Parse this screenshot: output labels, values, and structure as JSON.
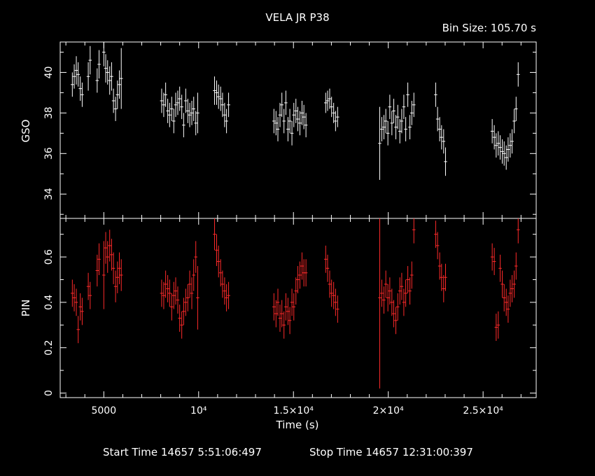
{
  "header": {
    "title": "VELA JR P38",
    "bin_size": "Bin Size: 105.70 s"
  },
  "footer": {
    "start_time": "Start Time 14657  5:51:06:497",
    "stop_time": "Stop Time 14657 12:31:00:397"
  },
  "colors": {
    "background": "#000000",
    "axes": "#ffffff",
    "gso": "#ffffff",
    "pin": "#ff2a2a"
  },
  "chart_data": [
    {
      "type": "scatter",
      "ylabel": "GSO",
      "xlabel": "",
      "xlim": [
        2700,
        27800
      ],
      "ylim": [
        32.8,
        41.5
      ],
      "yticks": [
        "34",
        "36",
        "38",
        "40"
      ],
      "series": [
        {
          "x": [
            3340,
            3440,
            3550,
            3650,
            3760,
            3860,
            4180,
            4280,
            4650,
            4750,
            5000,
            5100,
            5200,
            5310,
            5410,
            5510,
            5620,
            5720,
            5820,
            5920,
            8050,
            8160,
            8260,
            8370,
            8470,
            8580,
            8690,
            8790,
            8900,
            9000,
            9110,
            9210,
            9320,
            9430,
            9530,
            9640,
            9740,
            9850,
            9950,
            10840,
            10950,
            11050,
            11160,
            11260,
            11370,
            11470,
            11580,
            13970,
            14080,
            14180,
            14290,
            14390,
            14500,
            14600,
            14710,
            14810,
            14920,
            15020,
            15130,
            15230,
            15340,
            15450,
            15550,
            15660,
            16700,
            16800,
            16910,
            17010,
            17120,
            17220,
            17330,
            19550,
            19660,
            19770,
            19870,
            19980,
            20080,
            20190,
            20290,
            20400,
            20500,
            20610,
            20710,
            20820,
            20920,
            21030,
            21140,
            21240,
            21350,
            22500,
            22600,
            22710,
            22810,
            22920,
            23020,
            25480,
            25590,
            25690,
            25800,
            25900,
            26010,
            26110,
            26220,
            26320,
            26430,
            26530,
            26640,
            26740,
            26850
          ],
          "y": [
            39.4,
            39.8,
            40.1,
            39.9,
            39.2,
            38.9,
            39.8,
            40.6,
            39.6,
            40.4,
            41.0,
            40.2,
            40.0,
            39.6,
            39.8,
            38.6,
            38.2,
            38.9,
            39.4,
            39.7,
            38.6,
            38.4,
            38.9,
            38.1,
            37.9,
            38.2,
            37.6,
            38.4,
            38.5,
            38.7,
            38.3,
            37.4,
            38.6,
            38.1,
            37.9,
            38.0,
            38.2,
            37.5,
            38.0,
            39.1,
            39.0,
            38.8,
            38.7,
            38.4,
            37.9,
            37.6,
            38.4,
            37.6,
            37.5,
            37.2,
            37.9,
            38.4,
            37.6,
            38.5,
            37.2,
            37.6,
            37.0,
            37.9,
            38.1,
            37.7,
            37.5,
            38.0,
            37.8,
            37.4,
            38.5,
            38.6,
            38.7,
            38.3,
            38.0,
            37.6,
            37.8,
            36.5,
            37.2,
            37.3,
            37.6,
            37.0,
            38.3,
            37.5,
            38.1,
            37.3,
            37.8,
            37.1,
            37.6,
            38.3,
            37.2,
            38.9,
            37.3,
            38.0,
            38.4,
            38.9,
            37.7,
            37.2,
            36.8,
            36.6,
            35.6,
            37.1,
            36.8,
            36.4,
            36.5,
            36.3,
            36.1,
            36.0,
            35.8,
            36.2,
            36.4,
            36.6,
            37.6,
            38.2,
            39.9
          ],
          "err": [
            0.6,
            0.6,
            0.7,
            0.6,
            0.6,
            0.6,
            0.7,
            0.7,
            0.6,
            0.7,
            0.7,
            0.7,
            0.6,
            0.7,
            0.7,
            0.6,
            0.6,
            0.7,
            0.7,
            1.5,
            0.6,
            0.6,
            0.6,
            0.6,
            0.6,
            0.6,
            0.6,
            0.6,
            0.6,
            0.6,
            0.6,
            0.6,
            0.6,
            0.6,
            0.6,
            0.6,
            0.6,
            0.6,
            1.0,
            0.7,
            0.6,
            0.6,
            0.6,
            0.6,
            0.6,
            0.6,
            0.6,
            0.6,
            0.6,
            0.6,
            0.6,
            0.6,
            0.6,
            0.6,
            0.6,
            0.6,
            0.6,
            0.6,
            0.6,
            0.6,
            0.6,
            0.6,
            0.6,
            0.6,
            0.5,
            0.5,
            0.5,
            0.5,
            0.5,
            0.5,
            0.5,
            1.8,
            0.6,
            0.6,
            0.6,
            0.6,
            0.6,
            0.6,
            0.6,
            0.6,
            0.6,
            0.6,
            0.6,
            0.6,
            0.6,
            0.6,
            0.6,
            0.6,
            0.6,
            0.6,
            0.6,
            0.6,
            0.6,
            0.6,
            0.7,
            0.6,
            0.6,
            0.6,
            0.6,
            0.6,
            0.6,
            0.6,
            0.6,
            0.6,
            0.6,
            0.6,
            0.6,
            0.6,
            0.6
          ]
        }
      ]
    },
    {
      "type": "scatter",
      "ylabel": "PIN",
      "xlabel": "Time (s)",
      "xlim": [
        2700,
        27800
      ],
      "ylim": [
        -0.02,
        0.77
      ],
      "yticks": [
        "0",
        "0.2",
        "0.4",
        "0.6"
      ],
      "xticks": [
        {
          "value": 5000,
          "label": "5000"
        },
        {
          "value": 10000,
          "label": "10⁴"
        },
        {
          "value": 15000,
          "label": "1.5×10⁴"
        },
        {
          "value": 20000,
          "label": "2×10⁴"
        },
        {
          "value": 25000,
          "label": "2.5×10⁴"
        }
      ],
      "series": [
        {
          "x": [
            3340,
            3440,
            3550,
            3650,
            3760,
            3860,
            4180,
            4280,
            4650,
            4750,
            5000,
            5100,
            5200,
            5310,
            5410,
            5510,
            5620,
            5720,
            5820,
            5920,
            8050,
            8160,
            8260,
            8370,
            8470,
            8580,
            8690,
            8790,
            8900,
            9000,
            9110,
            9210,
            9320,
            9430,
            9530,
            9640,
            9740,
            9850,
            9950,
            10840,
            10950,
            11050,
            11160,
            11260,
            11370,
            11470,
            11580,
            13970,
            14080,
            14180,
            14290,
            14390,
            14500,
            14600,
            14710,
            14810,
            14920,
            15020,
            15130,
            15230,
            15340,
            15450,
            15550,
            15660,
            16700,
            16800,
            16910,
            17010,
            17120,
            17220,
            17330,
            19550,
            19660,
            19770,
            19870,
            19980,
            20080,
            20190,
            20290,
            20400,
            20500,
            20610,
            20710,
            20820,
            20920,
            21030,
            21140,
            21240,
            21350,
            22500,
            22600,
            22710,
            22810,
            22920,
            23020,
            25480,
            25590,
            25690,
            25800,
            25900,
            26010,
            26110,
            26220,
            26320,
            26430,
            26530,
            26640,
            26740,
            26850
          ],
          "y": [
            0.44,
            0.42,
            0.4,
            0.28,
            0.38,
            0.36,
            0.47,
            0.43,
            0.54,
            0.59,
            0.52,
            0.64,
            0.6,
            0.65,
            0.61,
            0.55,
            0.47,
            0.51,
            0.55,
            0.52,
            0.44,
            0.43,
            0.48,
            0.46,
            0.44,
            0.38,
            0.43,
            0.45,
            0.41,
            0.33,
            0.3,
            0.36,
            0.4,
            0.42,
            0.48,
            0.44,
            0.52,
            0.6,
            0.42,
            0.7,
            0.63,
            0.58,
            0.53,
            0.48,
            0.45,
            0.42,
            0.43,
            0.38,
            0.35,
            0.4,
            0.33,
            0.35,
            0.3,
            0.38,
            0.36,
            0.32,
            0.4,
            0.38,
            0.45,
            0.5,
            0.52,
            0.56,
            0.53,
            0.53,
            0.59,
            0.55,
            0.48,
            0.44,
            0.43,
            0.4,
            0.37,
            0.42,
            0.44,
            0.41,
            0.48,
            0.42,
            0.45,
            0.4,
            0.35,
            0.32,
            0.38,
            0.45,
            0.47,
            0.4,
            0.44,
            0.5,
            0.45,
            0.52,
            0.72,
            0.7,
            0.65,
            0.56,
            0.51,
            0.46,
            0.51,
            0.6,
            0.58,
            0.29,
            0.3,
            0.55,
            0.48,
            0.42,
            0.4,
            0.37,
            0.44,
            0.46,
            0.48,
            0.56,
            0.72
          ],
          "err": [
            0.06,
            0.06,
            0.06,
            0.06,
            0.06,
            0.06,
            0.06,
            0.06,
            0.07,
            0.07,
            0.15,
            0.07,
            0.07,
            0.07,
            0.07,
            0.07,
            0.07,
            0.07,
            0.07,
            0.07,
            0.06,
            0.06,
            0.06,
            0.06,
            0.06,
            0.06,
            0.06,
            0.06,
            0.06,
            0.06,
            0.06,
            0.06,
            0.06,
            0.06,
            0.06,
            0.07,
            0.07,
            0.07,
            0.14,
            0.07,
            0.07,
            0.07,
            0.06,
            0.06,
            0.06,
            0.06,
            0.06,
            0.06,
            0.06,
            0.06,
            0.06,
            0.06,
            0.06,
            0.06,
            0.06,
            0.06,
            0.06,
            0.06,
            0.06,
            0.06,
            0.06,
            0.06,
            0.06,
            0.06,
            0.06,
            0.06,
            0.06,
            0.06,
            0.06,
            0.06,
            0.06,
            0.4,
            0.06,
            0.06,
            0.06,
            0.06,
            0.06,
            0.06,
            0.06,
            0.06,
            0.06,
            0.06,
            0.06,
            0.06,
            0.06,
            0.06,
            0.06,
            0.06,
            0.06,
            0.06,
            0.06,
            0.06,
            0.06,
            0.06,
            0.06,
            0.06,
            0.06,
            0.06,
            0.06,
            0.06,
            0.06,
            0.06,
            0.06,
            0.06,
            0.06,
            0.06,
            0.06,
            0.06,
            0.06
          ]
        }
      ]
    }
  ]
}
